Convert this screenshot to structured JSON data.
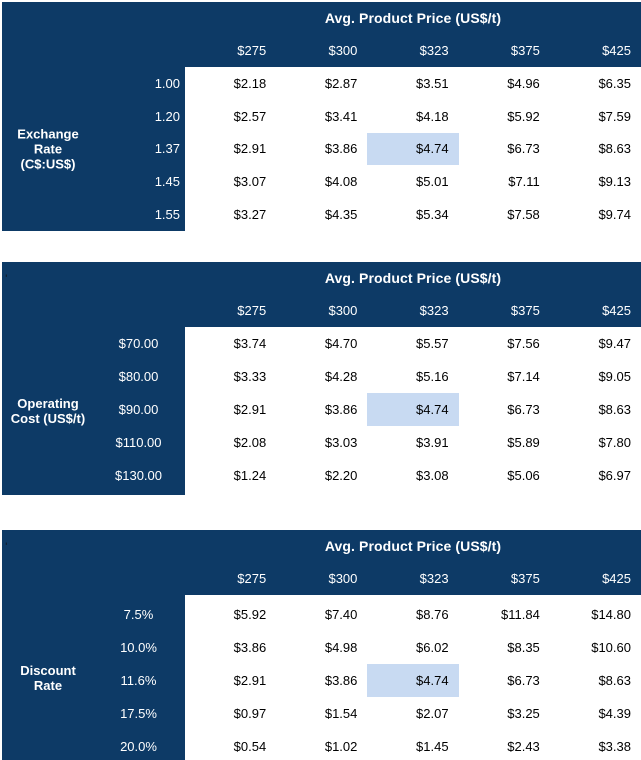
{
  "colors": {
    "navy": "#0d3a66",
    "header_text": "#ffffff",
    "value_text": "#000000",
    "highlight_bg": "#c8daf2"
  },
  "chart_data": [
    {
      "type": "table",
      "title": "Avg. Product Price (US$/t)",
      "row_axis_title": "Exchange\nRate\n(C$:US$)",
      "corner_mark": "",
      "columns": [
        "$275",
        "$300",
        "$323",
        "$375",
        "$425"
      ],
      "rows": [
        {
          "label": "1.00",
          "values": [
            "$2.18",
            "$2.87",
            "$3.51",
            "$4.96",
            "$6.35"
          ]
        },
        {
          "label": "1.20",
          "values": [
            "$2.57",
            "$3.41",
            "$4.18",
            "$5.92",
            "$7.59"
          ]
        },
        {
          "label": "1.37",
          "values": [
            "$2.91",
            "$3.86",
            "$4.74",
            "$6.73",
            "$8.63"
          ]
        },
        {
          "label": "1.45",
          "values": [
            "$3.07",
            "$4.08",
            "$5.01",
            "$7.11",
            "$9.13"
          ]
        },
        {
          "label": "1.55",
          "values": [
            "$3.27",
            "$4.35",
            "$5.34",
            "$7.58",
            "$9.74"
          ]
        }
      ],
      "highlight": {
        "row": 2,
        "col": 2,
        "value": "$4.74"
      }
    },
    {
      "type": "table",
      "title": "Avg. Product Price (US$/t)",
      "row_axis_title": "Operating\nCost (US$/t)",
      "corner_mark": "'",
      "columns": [
        "$275",
        "$300",
        "$323",
        "$375",
        "$425"
      ],
      "rows": [
        {
          "label": "$70.00",
          "values": [
            "$3.74",
            "$4.70",
            "$5.57",
            "$7.56",
            "$9.47"
          ]
        },
        {
          "label": "$80.00",
          "values": [
            "$3.33",
            "$4.28",
            "$5.16",
            "$7.14",
            "$9.05"
          ]
        },
        {
          "label": "$90.00",
          "values": [
            "$2.91",
            "$3.86",
            "$4.74",
            "$6.73",
            "$8.63"
          ]
        },
        {
          "label": "$110.00",
          "values": [
            "$2.08",
            "$3.03",
            "$3.91",
            "$5.89",
            "$7.80"
          ]
        },
        {
          "label": "$130.00",
          "values": [
            "$1.24",
            "$2.20",
            "$3.08",
            "$5.06",
            "$6.97"
          ]
        }
      ],
      "highlight": {
        "row": 2,
        "col": 2,
        "value": "$4.74"
      }
    },
    {
      "type": "table",
      "title": "Avg. Product Price (US$/t)",
      "row_axis_title": "Discount\nRate",
      "corner_mark": "'",
      "columns": [
        "$275",
        "$300",
        "$323",
        "$375",
        "$425"
      ],
      "rows": [
        {
          "label": "7.5%",
          "values": [
            "$5.92",
            "$7.40",
            "$8.76",
            "$11.84",
            "$14.80"
          ]
        },
        {
          "label": "10.0%",
          "values": [
            "$3.86",
            "$4.98",
            "$6.02",
            "$8.35",
            "$10.60"
          ]
        },
        {
          "label": "11.6%",
          "values": [
            "$2.91",
            "$3.86",
            "$4.74",
            "$6.73",
            "$8.63"
          ]
        },
        {
          "label": "17.5%",
          "values": [
            "$0.97",
            "$1.54",
            "$2.07",
            "$3.25",
            "$4.39"
          ]
        },
        {
          "label": "20.0%",
          "values": [
            "$0.54",
            "$1.02",
            "$1.45",
            "$2.43",
            "$3.38"
          ]
        }
      ],
      "highlight": {
        "row": 2,
        "col": 2,
        "value": "$4.74"
      }
    }
  ]
}
